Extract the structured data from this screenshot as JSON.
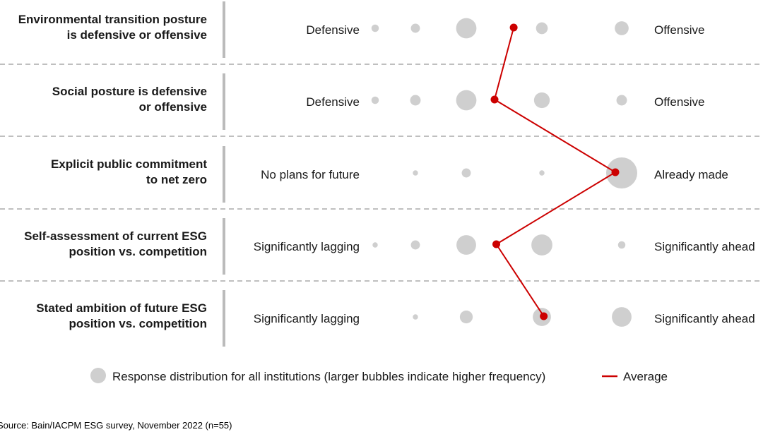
{
  "chart_data": {
    "type": "bubble",
    "scale_points": 7,
    "rows": [
      {
        "label_lines": [
          "Environmental transition posture",
          "is defensive or offensive"
        ],
        "left": "Defensive",
        "right": "Offensive",
        "sizes": [
          2,
          3,
          15,
          0,
          5,
          0,
          7
        ],
        "average": 4.3
      },
      {
        "label_lines": [
          "Social posture is defensive",
          "or offensive"
        ],
        "left": "Defensive",
        "right": "Offensive",
        "sizes": [
          2,
          4,
          15,
          0,
          9,
          0,
          4
        ],
        "average": 3.8
      },
      {
        "label_lines": [
          "Explicit public commitment",
          "to net zero"
        ],
        "left": "No plans for future",
        "right": "Already made",
        "sizes": [
          0,
          1,
          3,
          0,
          1,
          0,
          35
        ],
        "average": 6.85
      },
      {
        "label_lines": [
          "Self-assessment of current ESG",
          "position vs. competition"
        ],
        "left": "Significantly lagging",
        "right": "Significantly ahead",
        "sizes": [
          1,
          3,
          14,
          0,
          16,
          0,
          2
        ],
        "average": 3.85
      },
      {
        "label_lines": [
          "Stated ambition of future ESG",
          "position vs. competition"
        ],
        "left": "Significantly lagging",
        "right": "Significantly ahead",
        "sizes": [
          0,
          1,
          6,
          0,
          12,
          0,
          14
        ],
        "average": 5.05
      }
    ],
    "legend": {
      "bubbles": "Response distribution for all institutions (larger bubbles indicate higher frequency)",
      "average": "Average"
    },
    "colors": {
      "bubble": "#cfcfcf",
      "average": "#cc0000",
      "divider": "#bbbbbb",
      "dash": "#999999"
    }
  },
  "source": "Source: Bain/IACPM ESG survey, November 2022 (n=55)"
}
